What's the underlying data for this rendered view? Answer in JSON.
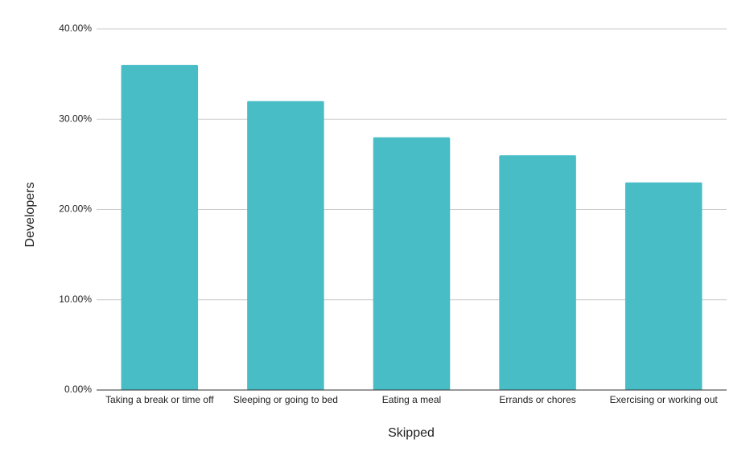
{
  "chart_data": {
    "type": "bar",
    "x_label": "Skipped",
    "y_label": "Developers",
    "categories": [
      "Taking a break or time off",
      "Sleeping or going to bed",
      "Eating a meal",
      "Errands or chores",
      "Exercising or working out"
    ],
    "values": [
      36,
      32,
      28,
      26,
      23
    ],
    "color": "#48bdc6",
    "ylim": [
      0,
      40
    ],
    "yticks": [
      {
        "value": 0,
        "label": "0.00%"
      },
      {
        "value": 10,
        "label": "10.00%"
      },
      {
        "value": 20,
        "label": "20.00%"
      },
      {
        "value": 30,
        "label": "30.00%"
      },
      {
        "value": 40,
        "label": "40.00%"
      }
    ],
    "grid": true
  }
}
